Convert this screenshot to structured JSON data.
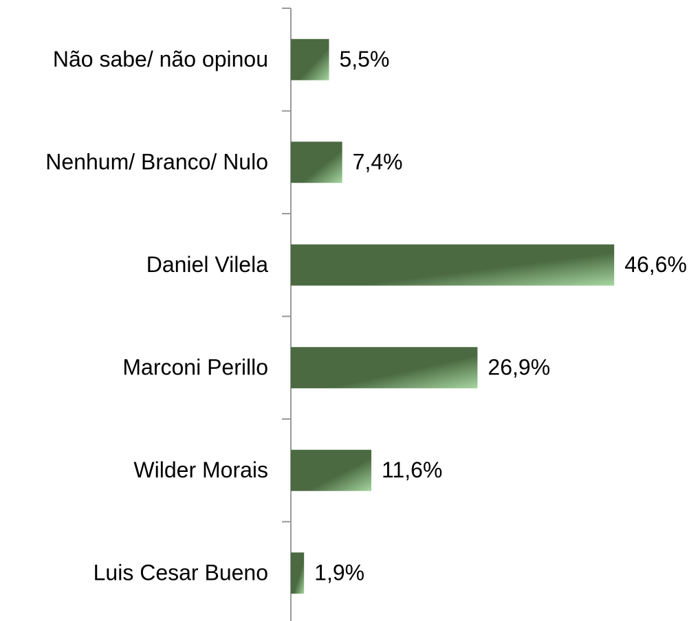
{
  "chart_data": {
    "type": "bar",
    "orientation": "horizontal",
    "categories": [
      "Não sabe/ não opinou",
      "Nenhum/ Branco/ Nulo",
      "Daniel Vilela",
      "Marconi Perillo",
      "Wilder Morais",
      "Luis Cesar Bueno"
    ],
    "values": [
      5.5,
      7.4,
      46.6,
      26.9,
      11.6,
      1.9
    ],
    "value_labels": [
      "5,5%",
      "7,4%",
      "46,6%",
      "26,9%",
      "11,6%",
      "1,9%"
    ],
    "color": "#4b6a42"
  }
}
